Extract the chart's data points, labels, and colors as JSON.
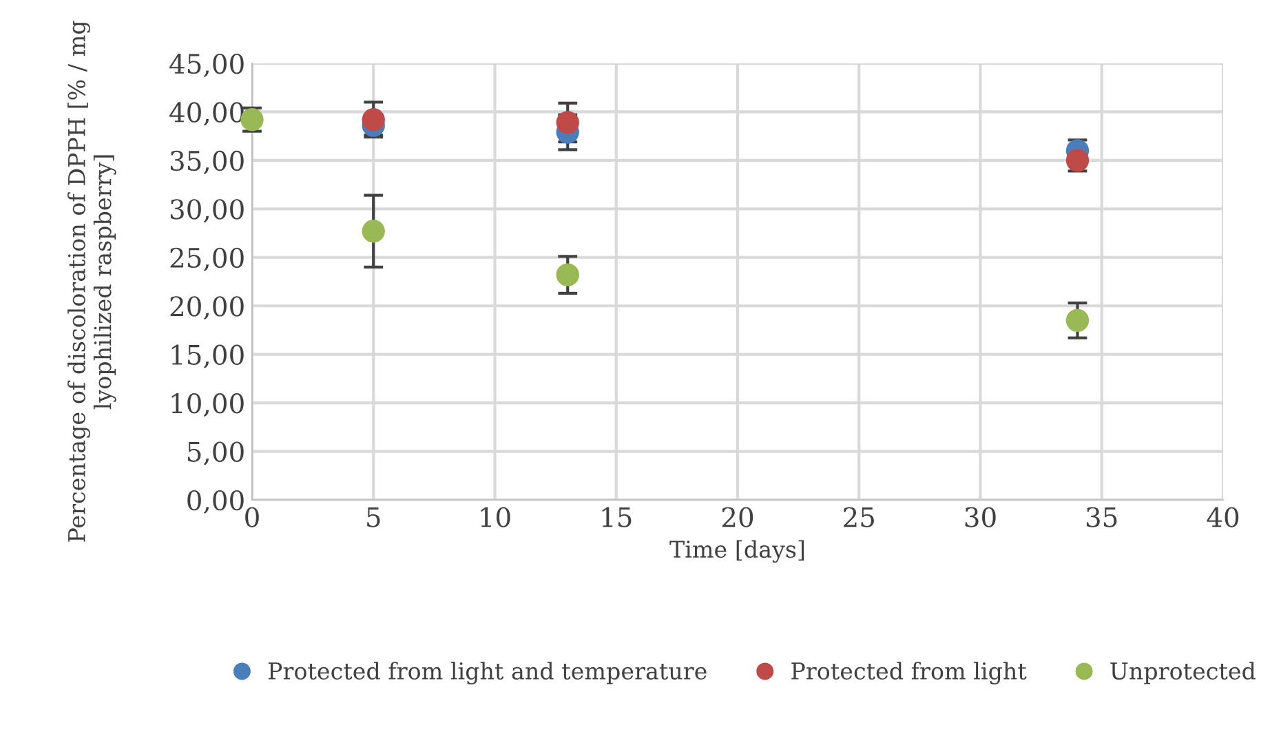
{
  "chart_data": {
    "type": "scatter",
    "xlabel": "Time [days]",
    "ylabel": "Percentage of discoloration of DPPH [% / mg lyophilized raspberry]",
    "x": [
      0,
      5,
      13,
      34
    ],
    "series": [
      {
        "name": "Protected from light and temperature",
        "color": "#4a7ebb",
        "values": [
          null,
          38.6,
          37.9,
          36.0
        ],
        "errors": [
          null,
          1.0,
          1.8,
          1.1
        ]
      },
      {
        "name": "Protected from light",
        "color": "#be4b48",
        "values": [
          null,
          39.2,
          38.9,
          35.0
        ],
        "errors": [
          null,
          1.8,
          2.0,
          1.1
        ]
      },
      {
        "name": "Unprotected",
        "color": "#98b954",
        "values": [
          39.2,
          27.7,
          23.2,
          18.5
        ],
        "errors": [
          1.2,
          3.7,
          1.9,
          1.8
        ]
      }
    ],
    "xlim": [
      0,
      40
    ],
    "xticks": [
      0,
      5,
      10,
      15,
      20,
      25,
      30,
      35,
      40
    ],
    "ylim": [
      0,
      45
    ],
    "yticks": [
      {
        "value": 0,
        "label": "0,00"
      },
      {
        "value": 5,
        "label": "5,00"
      },
      {
        "value": 10,
        "label": "10,00"
      },
      {
        "value": 15,
        "label": "15,00"
      },
      {
        "value": 20,
        "label": "20,00"
      },
      {
        "value": 25,
        "label": "25,00"
      },
      {
        "value": 30,
        "label": "30,00"
      },
      {
        "value": 35,
        "label": "35,00"
      },
      {
        "value": 40,
        "label": "40,00"
      },
      {
        "value": 45,
        "label": "45,00"
      }
    ],
    "grid": true,
    "legend": "bottom",
    "marker": "circle"
  }
}
